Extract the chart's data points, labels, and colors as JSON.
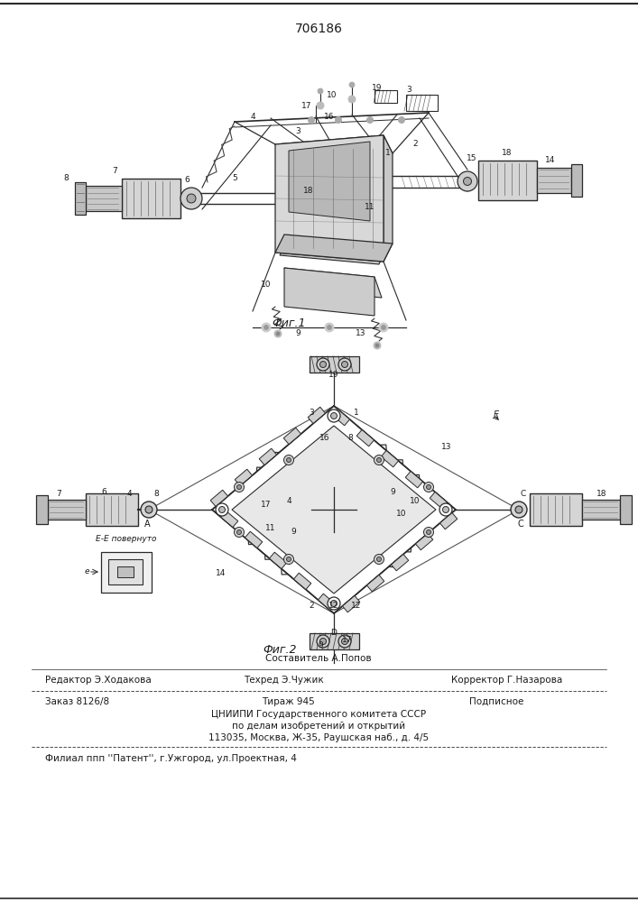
{
  "patent_number": "706186",
  "fig1_caption_ru": "Фиг.1",
  "fig2_caption_ru": "Фиг.2",
  "editor_label": "Редактор Э.Ходакова",
  "composer_label1": "Составитель А.Попов",
  "composer_label2": "Техред Э.Чужик",
  "corrector_label": "Корректор Г.Назарова",
  "order_label": "Заказ 8126/8",
  "tirazh_label": "Тираж 945",
  "podpisnoe_label": "Подписное",
  "cniipи_1": "ЦНИИПИ Государственного комитета СССР",
  "cniipи_2": "по делам изобретений и открытий",
  "cniipи_3": "113035, Москва, Ж-35, Раушская наб., д. 4/5",
  "filial": "Филиал ппп ''Патент'', г.Ужгород, ул.Проектная, 4",
  "ee_label": "E-E повернуто",
  "bg_color": "#ffffff",
  "line_color": "#2a2a2a",
  "text_color": "#1a1a1a",
  "fill_light": "#d8d8d8",
  "fill_mid": "#bbbbbb",
  "fill_dark": "#888888",
  "hatch_color": "#555555"
}
